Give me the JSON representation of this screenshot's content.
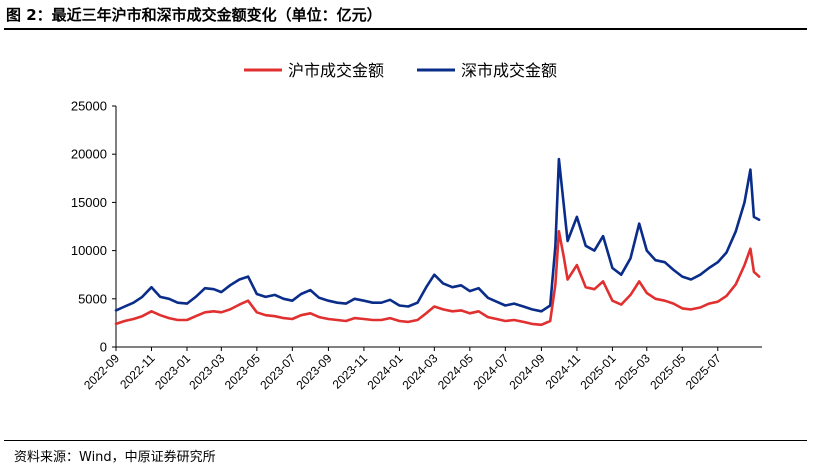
{
  "figure": {
    "title": "图 2：最近三年沪市和深市成交金额变化（单位：亿元）",
    "source": "资料来源：Wind，中原证券研究所"
  },
  "chart_data": {
    "type": "line",
    "title": "",
    "xlabel": "",
    "ylabel": "",
    "ylim": [
      0,
      25000
    ],
    "yticks": [
      0,
      5000,
      10000,
      15000,
      20000,
      25000
    ],
    "xlim": [
      "2022-09",
      "2025-09"
    ],
    "xticks": [
      "2022-09",
      "2022-11",
      "2023-01",
      "2023-03",
      "2023-05",
      "2023-07",
      "2023-09",
      "2023-11",
      "2024-01",
      "2024-03",
      "2024-05",
      "2024-07",
      "2024-09",
      "2024-11",
      "2025-01",
      "2025-03",
      "2025-05",
      "2025-07"
    ],
    "grid": false,
    "legend": "top-center",
    "series": [
      {
        "name": "沪市成交金额",
        "color": "#e03030",
        "x": [
          "2022-09-01",
          "2022-09-16",
          "2022-10-01",
          "2022-10-16",
          "2022-11-01",
          "2022-11-16",
          "2022-12-01",
          "2022-12-16",
          "2023-01-01",
          "2023-01-16",
          "2023-02-01",
          "2023-02-16",
          "2023-03-01",
          "2023-03-16",
          "2023-04-01",
          "2023-04-16",
          "2023-05-01",
          "2023-05-16",
          "2023-06-01",
          "2023-06-16",
          "2023-07-01",
          "2023-07-16",
          "2023-08-01",
          "2023-08-16",
          "2023-09-01",
          "2023-09-16",
          "2023-10-01",
          "2023-10-16",
          "2023-11-01",
          "2023-11-16",
          "2023-12-01",
          "2023-12-16",
          "2024-01-01",
          "2024-01-16",
          "2024-02-01",
          "2024-02-16",
          "2024-03-01",
          "2024-03-16",
          "2024-04-01",
          "2024-04-16",
          "2024-05-01",
          "2024-05-16",
          "2024-06-01",
          "2024-06-16",
          "2024-07-01",
          "2024-07-16",
          "2024-08-01",
          "2024-08-16",
          "2024-09-01",
          "2024-09-16",
          "2024-09-25",
          "2024-10-01",
          "2024-10-09",
          "2024-10-16",
          "2024-11-01",
          "2024-11-16",
          "2024-12-01",
          "2024-12-16",
          "2025-01-01",
          "2025-01-16",
          "2025-02-01",
          "2025-02-16",
          "2025-03-01",
          "2025-03-16",
          "2025-04-01",
          "2025-04-16",
          "2025-05-01",
          "2025-05-16",
          "2025-06-01",
          "2025-06-16",
          "2025-07-01",
          "2025-07-16",
          "2025-08-01",
          "2025-08-16",
          "2025-08-26",
          "2025-09-01",
          "2025-09-10"
        ],
        "values": [
          2400,
          2700,
          2900,
          3200,
          3700,
          3300,
          3000,
          2800,
          2800,
          3200,
          3600,
          3700,
          3600,
          3900,
          4400,
          4800,
          3600,
          3300,
          3200,
          3000,
          2900,
          3300,
          3500,
          3100,
          2900,
          2800,
          2700,
          3000,
          2900,
          2800,
          2800,
          3000,
          2700,
          2600,
          2800,
          3500,
          4200,
          3900,
          3700,
          3800,
          3500,
          3700,
          3100,
          2900,
          2700,
          2800,
          2600,
          2400,
          2300,
          2700,
          6500,
          12000,
          9500,
          7000,
          8500,
          6200,
          6000,
          6800,
          4800,
          4400,
          5400,
          6800,
          5600,
          5000,
          4800,
          4500,
          4000,
          3900,
          4100,
          4500,
          4700,
          5300,
          6500,
          8500,
          10200,
          7800,
          7300
        ]
      },
      {
        "name": "深市成交金额",
        "color": "#0a2d8a",
        "x": [
          "2022-09-01",
          "2022-09-16",
          "2022-10-01",
          "2022-10-16",
          "2022-11-01",
          "2022-11-16",
          "2022-12-01",
          "2022-12-16",
          "2023-01-01",
          "2023-01-16",
          "2023-02-01",
          "2023-02-16",
          "2023-03-01",
          "2023-03-16",
          "2023-04-01",
          "2023-04-16",
          "2023-05-01",
          "2023-05-16",
          "2023-06-01",
          "2023-06-16",
          "2023-07-01",
          "2023-07-16",
          "2023-08-01",
          "2023-08-16",
          "2023-09-01",
          "2023-09-16",
          "2023-10-01",
          "2023-10-16",
          "2023-11-01",
          "2023-11-16",
          "2023-12-01",
          "2023-12-16",
          "2024-01-01",
          "2024-01-16",
          "2024-02-01",
          "2024-02-16",
          "2024-03-01",
          "2024-03-16",
          "2024-04-01",
          "2024-04-16",
          "2024-05-01",
          "2024-05-16",
          "2024-06-01",
          "2024-06-16",
          "2024-07-01",
          "2024-07-16",
          "2024-08-01",
          "2024-08-16",
          "2024-09-01",
          "2024-09-16",
          "2024-09-25",
          "2024-10-01",
          "2024-10-09",
          "2024-10-16",
          "2024-11-01",
          "2024-11-16",
          "2024-12-01",
          "2024-12-16",
          "2025-01-01",
          "2025-01-16",
          "2025-02-01",
          "2025-02-16",
          "2025-03-01",
          "2025-03-16",
          "2025-04-01",
          "2025-04-16",
          "2025-05-01",
          "2025-05-16",
          "2025-06-01",
          "2025-06-16",
          "2025-07-01",
          "2025-07-16",
          "2025-08-01",
          "2025-08-16",
          "2025-08-26",
          "2025-09-01",
          "2025-09-10"
        ],
        "values": [
          3800,
          4200,
          4600,
          5200,
          6200,
          5200,
          5000,
          4600,
          4500,
          5200,
          6100,
          6000,
          5700,
          6400,
          7000,
          7300,
          5500,
          5200,
          5400,
          5000,
          4800,
          5500,
          5900,
          5100,
          4800,
          4600,
          4500,
          5000,
          4800,
          4600,
          4600,
          4900,
          4300,
          4200,
          4600,
          6200,
          7500,
          6600,
          6200,
          6400,
          5800,
          6100,
          5100,
          4700,
          4300,
          4500,
          4200,
          3900,
          3700,
          4300,
          10500,
          19500,
          15000,
          11000,
          13500,
          10500,
          10000,
          11500,
          8200,
          7500,
          9200,
          12800,
          10000,
          9000,
          8800,
          8000,
          7300,
          7000,
          7500,
          8200,
          8800,
          9800,
          12000,
          15000,
          18400,
          13500,
          13200
        ]
      }
    ]
  }
}
